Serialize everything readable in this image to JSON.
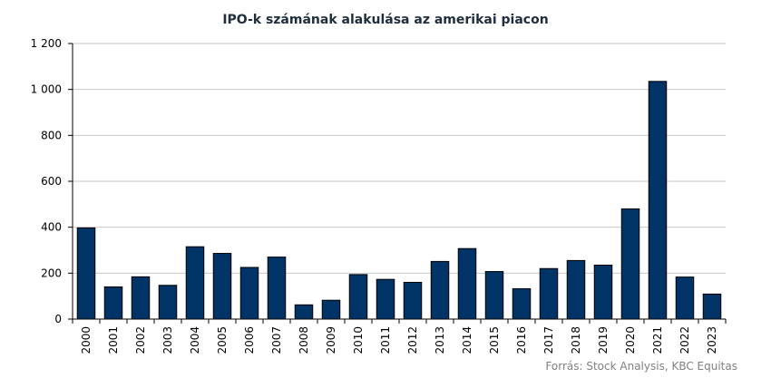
{
  "chart_data": {
    "type": "bar",
    "title": "IPO-k számának alakulása az amerikai piacon",
    "xlabel": "",
    "ylabel": "",
    "categories": [
      "2000",
      "2001",
      "2002",
      "2003",
      "2004",
      "2005",
      "2006",
      "2007",
      "2008",
      "2009",
      "2010",
      "2011",
      "2012",
      "2013",
      "2014",
      "2015",
      "2016",
      "2017",
      "2018",
      "2019",
      "2020",
      "2021",
      "2022",
      "2023"
    ],
    "values": [
      397,
      140,
      184,
      147,
      315,
      286,
      225,
      270,
      62,
      82,
      194,
      173,
      160,
      251,
      307,
      207,
      132,
      220,
      255,
      235,
      480,
      1035,
      183,
      109
    ],
    "ylim": [
      0,
      1200
    ],
    "yticks": [
      0,
      200,
      400,
      600,
      800,
      1000,
      1200
    ],
    "ytick_labels": [
      "0",
      "200",
      "400",
      "600",
      "800",
      "1 000",
      "1 200"
    ],
    "grid": true,
    "colors": {
      "bar": "#003366",
      "grid": "#c8c8c8",
      "axis": "#000000"
    }
  },
  "source": "Forrás: Stock Analysis, KBC Equitas"
}
